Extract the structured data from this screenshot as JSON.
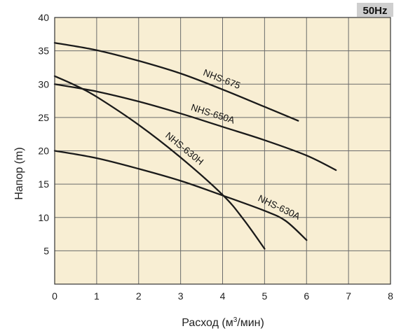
{
  "chart_data": {
    "type": "line",
    "title": "",
    "badge": "50Hz",
    "xlabel": "Расход (м³/мин)",
    "ylabel": "Напор (m)",
    "xlim": [
      0,
      8
    ],
    "ylim": [
      0,
      40
    ],
    "x_ticks": [
      0,
      1,
      2,
      3,
      4,
      5,
      6,
      7,
      8
    ],
    "y_ticks": [
      5,
      10,
      15,
      20,
      25,
      30,
      35,
      40
    ],
    "grid": true,
    "series": [
      {
        "name": "NHS-675",
        "x": [
          0,
          1,
          2,
          3,
          4,
          5,
          5.8
        ],
        "y": [
          36.2,
          35.1,
          33.5,
          31.6,
          29.2,
          26.6,
          24.5
        ]
      },
      {
        "name": "NHS-650A",
        "x": [
          0,
          1,
          2,
          3,
          4,
          5,
          6,
          6.7
        ],
        "y": [
          30,
          28.9,
          27.4,
          25.6,
          23.6,
          21.6,
          19.3,
          17.1
        ]
      },
      {
        "name": "NHS-630H",
        "x": [
          0,
          0.5,
          1,
          2,
          3,
          4,
          4.5,
          5
        ],
        "y": [
          31.2,
          29.8,
          28.1,
          23.9,
          19,
          13.4,
          9.7,
          5.3
        ]
      },
      {
        "name": "NHS-630A",
        "x": [
          0,
          1,
          2,
          3,
          4,
          5,
          5.5,
          6
        ],
        "y": [
          20,
          18.9,
          17.3,
          15.5,
          13.3,
          11,
          9.5,
          6.6
        ]
      }
    ]
  },
  "colors": {
    "plot_background": "#f8eed3",
    "grid": "#6b6b6b",
    "curve": "#1a1a1a",
    "badge_background": "#cfcfcf"
  }
}
